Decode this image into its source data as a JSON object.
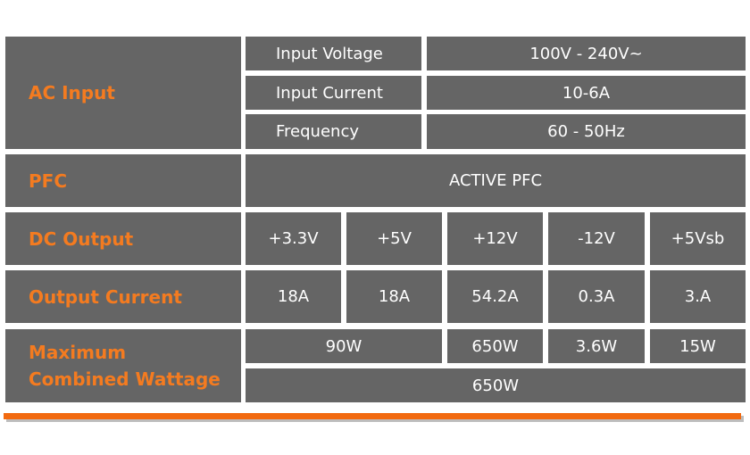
{
  "table": {
    "ac_input": {
      "label": "AC Input",
      "rows": [
        [
          "Input Voltage",
          "100V - 240V~"
        ],
        [
          "Input Current",
          "10-6A"
        ],
        [
          "Frequency",
          "60 - 50Hz"
        ]
      ]
    },
    "pfc": {
      "label": "PFC",
      "value": "ACTIVE PFC"
    },
    "dc_output": {
      "label": "DC Output",
      "values": [
        "+3.3V",
        "+5V",
        "+12V",
        "-12V",
        "+5Vsb"
      ]
    },
    "output_current": {
      "label": "Output Current",
      "values": [
        "18A",
        "18A",
        "54.2A",
        "0.3A",
        "3.A"
      ]
    },
    "max_wattage": {
      "label": "Maximum Combined Wattage",
      "values": [
        "90W",
        "650W",
        "3.6W",
        "15W"
      ],
      "total": "650W"
    }
  }
}
